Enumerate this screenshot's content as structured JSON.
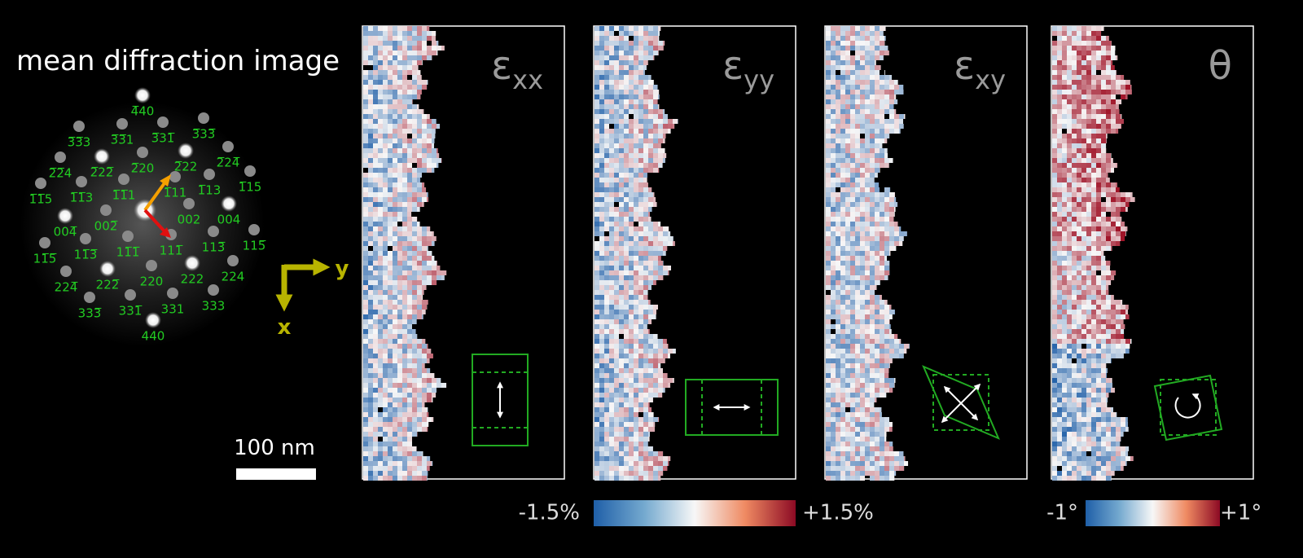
{
  "title": "mean diffraction image",
  "spot_labels": [
    "4̅40",
    "3̅3̅3",
    "3̅3̅1",
    "3̅31̅",
    "3̅33̅",
    "2̅2̅4",
    "2̅22̅",
    "2̅20",
    "2̅22",
    "2̅24̅",
    "1̅1̅5",
    "1̅1̅3",
    "1̅1̅1",
    "1̅11",
    "1̅13",
    "1̅15",
    "004̅",
    "002̅",
    "002",
    "004",
    "11̅5̅",
    "11̅3̅",
    "11̅1̅",
    "111̅",
    "113̅",
    "115̅",
    "224̅",
    "222̅",
    "220",
    "222",
    "224",
    "333̅",
    "331̅",
    "331",
    "333",
    "440"
  ],
  "axes": {
    "y": "y",
    "x": "x"
  },
  "scale_bar": "100 nm",
  "panels": [
    {
      "symbol": "ε",
      "subscript": "xx"
    },
    {
      "symbol": "ε",
      "subscript": "yy"
    },
    {
      "symbol": "ε",
      "subscript": "xy"
    },
    {
      "symbol": "θ",
      "subscript": ""
    }
  ],
  "strain_colorbar": {
    "min": "-1.5%",
    "max": "+1.5%"
  },
  "rotation_colorbar": {
    "min": "-1°",
    "max": "+1°"
  }
}
